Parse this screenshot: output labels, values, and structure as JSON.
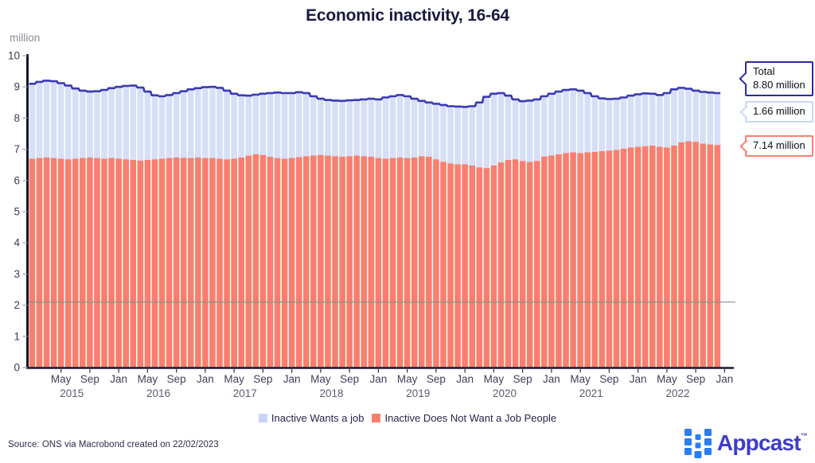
{
  "title": "Economic inactivity, 16-64",
  "y_axis": {
    "unit": "million",
    "ticks": [
      0,
      1,
      2,
      3,
      4,
      5,
      6,
      7,
      8,
      9,
      10
    ]
  },
  "x_axis": {
    "month_tick_labels": [
      "May",
      "Sep",
      "Jan",
      "May",
      "Sep",
      "Jan",
      "May",
      "Sep",
      "Jan",
      "May",
      "Sep",
      "Jan",
      "May",
      "Sep",
      "Jan",
      "May",
      "Sep",
      "Jan",
      "May",
      "Sep",
      "Jan",
      "May",
      "Sep",
      "Jan"
    ],
    "year_labels": [
      "2015",
      "2016",
      "2017",
      "2018",
      "2019",
      "2020",
      "2021",
      "2022"
    ]
  },
  "legend": [
    {
      "label": "Inactive Wants a job",
      "color": "#c7d4f6"
    },
    {
      "label": "Inactive Does Not Want a Job People",
      "color": "#f87f6e"
    }
  ],
  "callouts": {
    "total": {
      "line1": "Total",
      "line2": "8.80 million"
    },
    "wants": {
      "label": "1.66 million"
    },
    "not_want": {
      "label": "7.14 million"
    }
  },
  "source": "Source: ONS via Macrobond created on 22/02/2023",
  "logo": {
    "text": "Appcast",
    "tm": "™"
  },
  "chart_data": {
    "type": "bar",
    "stacked": true,
    "frequency": "monthly",
    "x_start": "2015-01",
    "x_end": "2022-12",
    "ylim": [
      0,
      10
    ],
    "ylabel": "million",
    "grid": false,
    "reference_line_y": 2.1,
    "total_line_color": "#3a3ab2",
    "axis_color": "#16162e",
    "series": [
      {
        "name": "Inactive Wants a job",
        "color": "#d7dff8",
        "values": [
          2.4,
          2.44,
          2.46,
          2.46,
          2.42,
          2.36,
          2.25,
          2.16,
          2.11,
          2.14,
          2.2,
          2.24,
          2.3,
          2.35,
          2.38,
          2.34,
          2.19,
          2.05,
          2.0,
          2.02,
          2.06,
          2.13,
          2.2,
          2.22,
          2.27,
          2.28,
          2.27,
          2.2,
          2.08,
          1.99,
          1.92,
          1.91,
          1.96,
          2.04,
          2.1,
          2.1,
          2.08,
          2.08,
          2.02,
          1.9,
          1.8,
          1.78,
          1.78,
          1.79,
          1.79,
          1.78,
          1.82,
          1.86,
          1.88,
          1.96,
          1.98,
          2.0,
          1.98,
          1.88,
          1.77,
          1.74,
          1.78,
          1.82,
          1.83,
          1.85,
          1.84,
          1.9,
          2.08,
          2.28,
          2.3,
          2.22,
          2.06,
          1.92,
          1.92,
          1.96,
          1.98,
          1.93,
          1.98,
          2.01,
          2.02,
          2.02,
          2.0,
          1.9,
          1.78,
          1.69,
          1.65,
          1.64,
          1.64,
          1.66,
          1.68,
          1.69,
          1.66,
          1.66,
          1.74,
          1.8,
          1.75,
          1.68,
          1.64,
          1.66,
          1.66,
          1.66
        ]
      },
      {
        "name": "Inactive Does Not Want a Job People",
        "color": "#f87f6e",
        "values": [
          6.7,
          6.72,
          6.74,
          6.72,
          6.7,
          6.68,
          6.7,
          6.72,
          6.74,
          6.72,
          6.7,
          6.72,
          6.7,
          6.68,
          6.66,
          6.64,
          6.66,
          6.68,
          6.7,
          6.72,
          6.74,
          6.73,
          6.72,
          6.74,
          6.72,
          6.72,
          6.7,
          6.68,
          6.7,
          6.74,
          6.8,
          6.84,
          6.82,
          6.76,
          6.72,
          6.7,
          6.72,
          6.75,
          6.78,
          6.8,
          6.82,
          6.8,
          6.78,
          6.76,
          6.78,
          6.8,
          6.78,
          6.76,
          6.72,
          6.7,
          6.72,
          6.74,
          6.72,
          6.74,
          6.78,
          6.76,
          6.68,
          6.6,
          6.55,
          6.52,
          6.52,
          6.48,
          6.42,
          6.4,
          6.48,
          6.58,
          6.66,
          6.68,
          6.62,
          6.6,
          6.62,
          6.77,
          6.8,
          6.84,
          6.88,
          6.9,
          6.88,
          6.9,
          6.92,
          6.94,
          6.96,
          6.98,
          7.02,
          7.06,
          7.08,
          7.1,
          7.12,
          7.08,
          7.06,
          7.12,
          7.22,
          7.26,
          7.24,
          7.18,
          7.16,
          7.14
        ]
      }
    ],
    "final_values": {
      "total": 8.8,
      "wants": 1.66,
      "not_want": 7.14
    }
  }
}
